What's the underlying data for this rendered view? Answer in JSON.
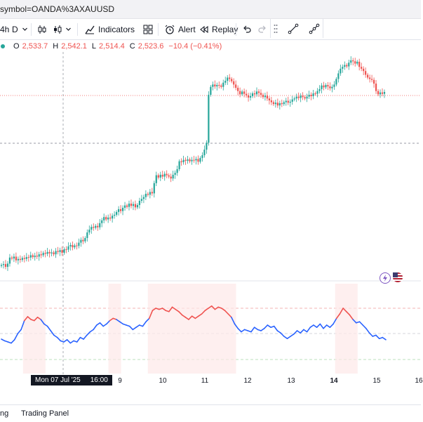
{
  "url": "symbol=OANDA%3AXAUUSD",
  "toolbar": {
    "interval": "4h",
    "timeframe": "D",
    "indicators_label": "Indicators",
    "alert_label": "Alert",
    "replay_label": "Replay"
  },
  "legend": {
    "o_label": "O",
    "o_value": "2,533.7",
    "h_label": "H",
    "h_value": "2,542.1",
    "l_label": "L",
    "l_value": "2,514.4",
    "c_label": "C",
    "c_value": "2,523.6",
    "change": "−10.4 (−0.41%)"
  },
  "crosshair_label": {
    "date": "Mon 07 Jul '25",
    "time": "16:00"
  },
  "time_axis": [
    "9",
    "10",
    "11",
    "12",
    "13",
    "14",
    "15",
    "16"
  ],
  "bottom_tabs": [
    "ng",
    "Trading Panel"
  ],
  "colors": {
    "up": "#26a69a",
    "down": "#ef5350",
    "oscillator": "#2962ff",
    "overbought": "#ef5350"
  },
  "chart_data": {
    "type": "candlestick",
    "main_close": [
      2.2,
      2.4,
      1.8,
      2.5,
      3.8,
      3.6,
      4.0,
      3.2,
      3.5,
      3.3,
      3.7,
      3.5,
      3.9,
      3.8,
      4.3,
      3.9,
      4.2,
      4.0,
      4.5,
      4.3,
      4.8,
      4.6,
      5.0,
      4.7,
      4.9,
      4.5,
      5.2,
      5.0,
      5.4,
      4.8,
      5.6,
      5.5,
      6.2,
      6.5,
      6.0,
      6.4,
      6.3,
      7.0,
      7.6,
      7.3,
      8.0,
      9.2,
      9.8,
      10.4,
      10.2,
      10.6,
      10.3,
      11.2,
      11.8,
      12.5,
      12.0,
      12.4,
      12.2,
      12.8,
      13.0,
      13.6,
      14.2,
      13.8,
      14.5,
      15.0,
      14.7,
      15.4,
      14.9,
      15.3,
      14.6,
      15.1,
      16.0,
      16.4,
      16.8,
      17.5,
      17.3,
      17.9,
      17.6,
      19.8,
      21.5,
      21.0,
      21.6,
      21.2,
      21.8,
      21.5,
      21.2,
      20.8,
      21.6,
      22.0,
      22.8,
      24.5,
      24.3,
      24.8,
      24.6,
      24.9,
      24.5,
      24.8,
      24.7,
      25.0,
      24.4,
      25.2,
      25.8,
      27.0,
      28.5,
      38.8,
      40.5,
      41.0,
      40.6,
      40.9,
      40.8,
      40.5,
      41.4,
      41.8,
      42.5,
      42.2,
      41.7,
      41.0,
      40.3,
      39.6,
      38.9,
      39.5,
      39.0,
      38.7,
      38.2,
      38.5,
      39.1,
      38.9,
      39.5,
      39.2,
      38.8,
      38.3,
      38.6,
      38.0,
      37.6,
      37.2,
      36.8,
      37.1,
      36.5,
      37.0,
      36.8,
      37.2,
      37.5,
      37.1,
      37.3,
      37.8,
      38.0,
      38.4,
      38.1,
      38.6,
      38.3,
      38.0,
      38.4,
      38.8,
      38.5,
      39.1,
      39.0,
      39.6,
      40.0,
      40.8,
      40.4,
      40.9,
      40.6,
      40.2,
      40.5,
      41.0,
      42.2,
      43.4,
      44.4,
      44.8,
      45.2,
      44.9,
      45.7,
      46.2,
      46.0,
      45.5,
      45.9,
      44.8,
      44.4,
      43.9,
      43.1,
      42.5,
      42.2,
      42.0,
      41.2,
      39.6,
      38.9,
      39.3,
      39.0,
      39.4
    ],
    "oscillator": [
      0.45,
      0.42,
      0.4,
      0.38,
      0.44,
      0.55,
      0.62,
      0.78,
      0.85,
      0.8,
      0.78,
      0.84,
      0.8,
      0.72,
      0.68,
      0.6,
      0.52,
      0.48,
      0.42,
      0.4,
      0.44,
      0.38,
      0.42,
      0.4,
      0.48,
      0.45,
      0.52,
      0.58,
      0.62,
      0.7,
      0.74,
      0.68,
      0.72,
      0.78,
      0.82,
      0.8,
      0.76,
      0.72,
      0.7,
      0.68,
      0.62,
      0.66,
      0.7,
      0.68,
      0.76,
      0.82,
      0.96,
      1.0,
      0.98,
      1.0,
      0.96,
      0.94,
      1.02,
      0.98,
      0.94,
      0.88,
      0.84,
      0.8,
      0.86,
      0.82,
      0.86,
      0.9,
      0.96,
      1.0,
      1.04,
      0.98,
      1.02,
      1.0,
      0.96,
      0.9,
      0.84,
      0.72,
      0.64,
      0.58,
      0.62,
      0.6,
      0.58,
      0.66,
      0.62,
      0.6,
      0.64,
      0.7,
      0.66,
      0.68,
      0.6,
      0.56,
      0.5,
      0.46,
      0.5,
      0.54,
      0.6,
      0.56,
      0.62,
      0.58,
      0.66,
      0.7,
      0.66,
      0.72,
      0.64,
      0.7,
      0.66,
      0.72,
      0.82,
      0.9,
      1.0,
      0.94,
      0.88,
      0.8,
      0.74,
      0.76,
      0.7,
      0.64,
      0.56,
      0.5,
      0.52,
      0.46,
      0.48,
      0.44
    ]
  }
}
